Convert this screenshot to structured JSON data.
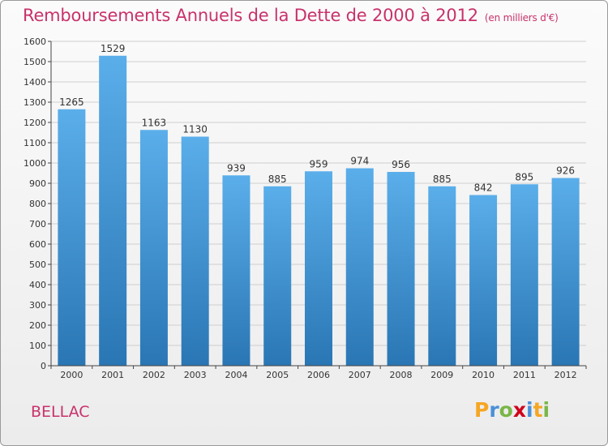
{
  "title": "Remboursements Annuels de la Dette de 2000 à 2012",
  "unit_note": "(en milliers d'€)",
  "commune": "BELLAC",
  "brand": {
    "letters": [
      "P",
      "r",
      "o",
      "x",
      "i",
      "t",
      "i"
    ],
    "colors": [
      "#f5a623",
      "#4a90d9",
      "#7ab648",
      "#d0021b",
      "#4a90d9",
      "#f5a623",
      "#7ab648"
    ]
  },
  "colors": {
    "bar_light": "#5aaeea",
    "bar_dark": "#2a76b4",
    "title": "#c8326b",
    "grid": "#cfcfcf"
  },
  "chart_data": {
    "type": "bar",
    "title": "Remboursements Annuels de la Dette de 2000 à 2012",
    "categories": [
      "2000",
      "2001",
      "2002",
      "2003",
      "2004",
      "2005",
      "2006",
      "2007",
      "2008",
      "2009",
      "2010",
      "2011",
      "2012"
    ],
    "values": [
      1265,
      1529,
      1163,
      1130,
      939,
      885,
      959,
      974,
      956,
      885,
      842,
      895,
      926
    ],
    "ylim": [
      0,
      1600
    ],
    "yticks": [
      0,
      100,
      200,
      300,
      400,
      500,
      600,
      700,
      800,
      900,
      1000,
      1100,
      1200,
      1300,
      1400,
      1500,
      1600
    ],
    "xlabel": "",
    "ylabel": "",
    "grid": true
  }
}
